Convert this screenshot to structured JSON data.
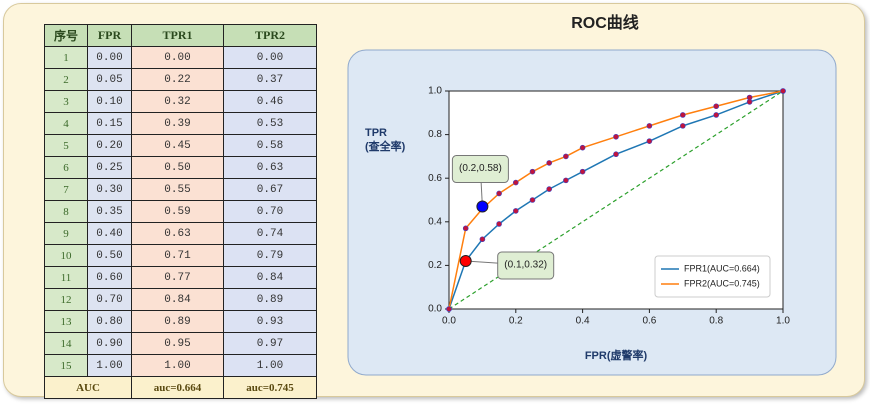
{
  "table": {
    "header": [
      "序号",
      "FPR",
      "TPR1",
      "TPR2"
    ],
    "rows": [
      [
        "1",
        "0.00",
        "0.00",
        "0.00"
      ],
      [
        "2",
        "0.05",
        "0.22",
        "0.37"
      ],
      [
        "3",
        "0.10",
        "0.32",
        "0.46"
      ],
      [
        "4",
        "0.15",
        "0.39",
        "0.53"
      ],
      [
        "5",
        "0.20",
        "0.45",
        "0.58"
      ],
      [
        "6",
        "0.25",
        "0.50",
        "0.63"
      ],
      [
        "7",
        "0.30",
        "0.55",
        "0.67"
      ],
      [
        "8",
        "0.35",
        "0.59",
        "0.70"
      ],
      [
        "9",
        "0.40",
        "0.63",
        "0.74"
      ],
      [
        "10",
        "0.50",
        "0.71",
        "0.79"
      ],
      [
        "11",
        "0.60",
        "0.77",
        "0.84"
      ],
      [
        "12",
        "0.70",
        "0.84",
        "0.89"
      ],
      [
        "13",
        "0.80",
        "0.89",
        "0.93"
      ],
      [
        "14",
        "0.90",
        "0.95",
        "0.97"
      ],
      [
        "15",
        "1.00",
        "1.00",
        "1.00"
      ]
    ],
    "footer": [
      "AUC",
      "auc=0.664",
      "auc=0.745"
    ]
  },
  "chart_data": {
    "type": "line",
    "title": "ROC曲线",
    "xlabel": "FPR(虚警率)",
    "ylabel": [
      "TPR",
      "(查全率)"
    ],
    "x": [
      0,
      0.05,
      0.1,
      0.15,
      0.2,
      0.25,
      0.3,
      0.35,
      0.4,
      0.5,
      0.6,
      0.7,
      0.8,
      0.9,
      1
    ],
    "series": [
      {
        "name": "FPR1(AUC=0.664)",
        "color": "#1f77b4",
        "values": [
          0,
          0.22,
          0.32,
          0.39,
          0.45,
          0.5,
          0.55,
          0.59,
          0.63,
          0.71,
          0.77,
          0.84,
          0.89,
          0.95,
          1
        ]
      },
      {
        "name": "FPR2(AUC=0.745)",
        "color": "#ff7f0e",
        "values": [
          0,
          0.37,
          0.46,
          0.53,
          0.58,
          0.63,
          0.67,
          0.7,
          0.74,
          0.79,
          0.84,
          0.89,
          0.93,
          0.97,
          1
        ]
      }
    ],
    "marker_color": "#c0143c",
    "diagonal_color": "#2ca02c",
    "xlim": [
      0,
      1
    ],
    "ylim": [
      0,
      1
    ],
    "xticks": [
      {
        "value": 0,
        "label": "0.0"
      },
      0.2,
      0.4,
      0.6,
      0.8,
      {
        "value": 1,
        "label": "1.0"
      }
    ],
    "yticks": [
      {
        "value": 0,
        "label": "0.0"
      },
      0.2,
      0.4,
      0.6,
      0.8,
      {
        "value": 1,
        "label": "1.0"
      }
    ],
    "legend": "lower right",
    "annotations": [
      {
        "text": "(0.2,0.58)",
        "x": 0.1,
        "y": 0.47,
        "color": "#0000ff"
      },
      {
        "text": "(0.1,0.32)",
        "x": 0.05,
        "y": 0.22,
        "color": "#ff0000"
      }
    ]
  }
}
